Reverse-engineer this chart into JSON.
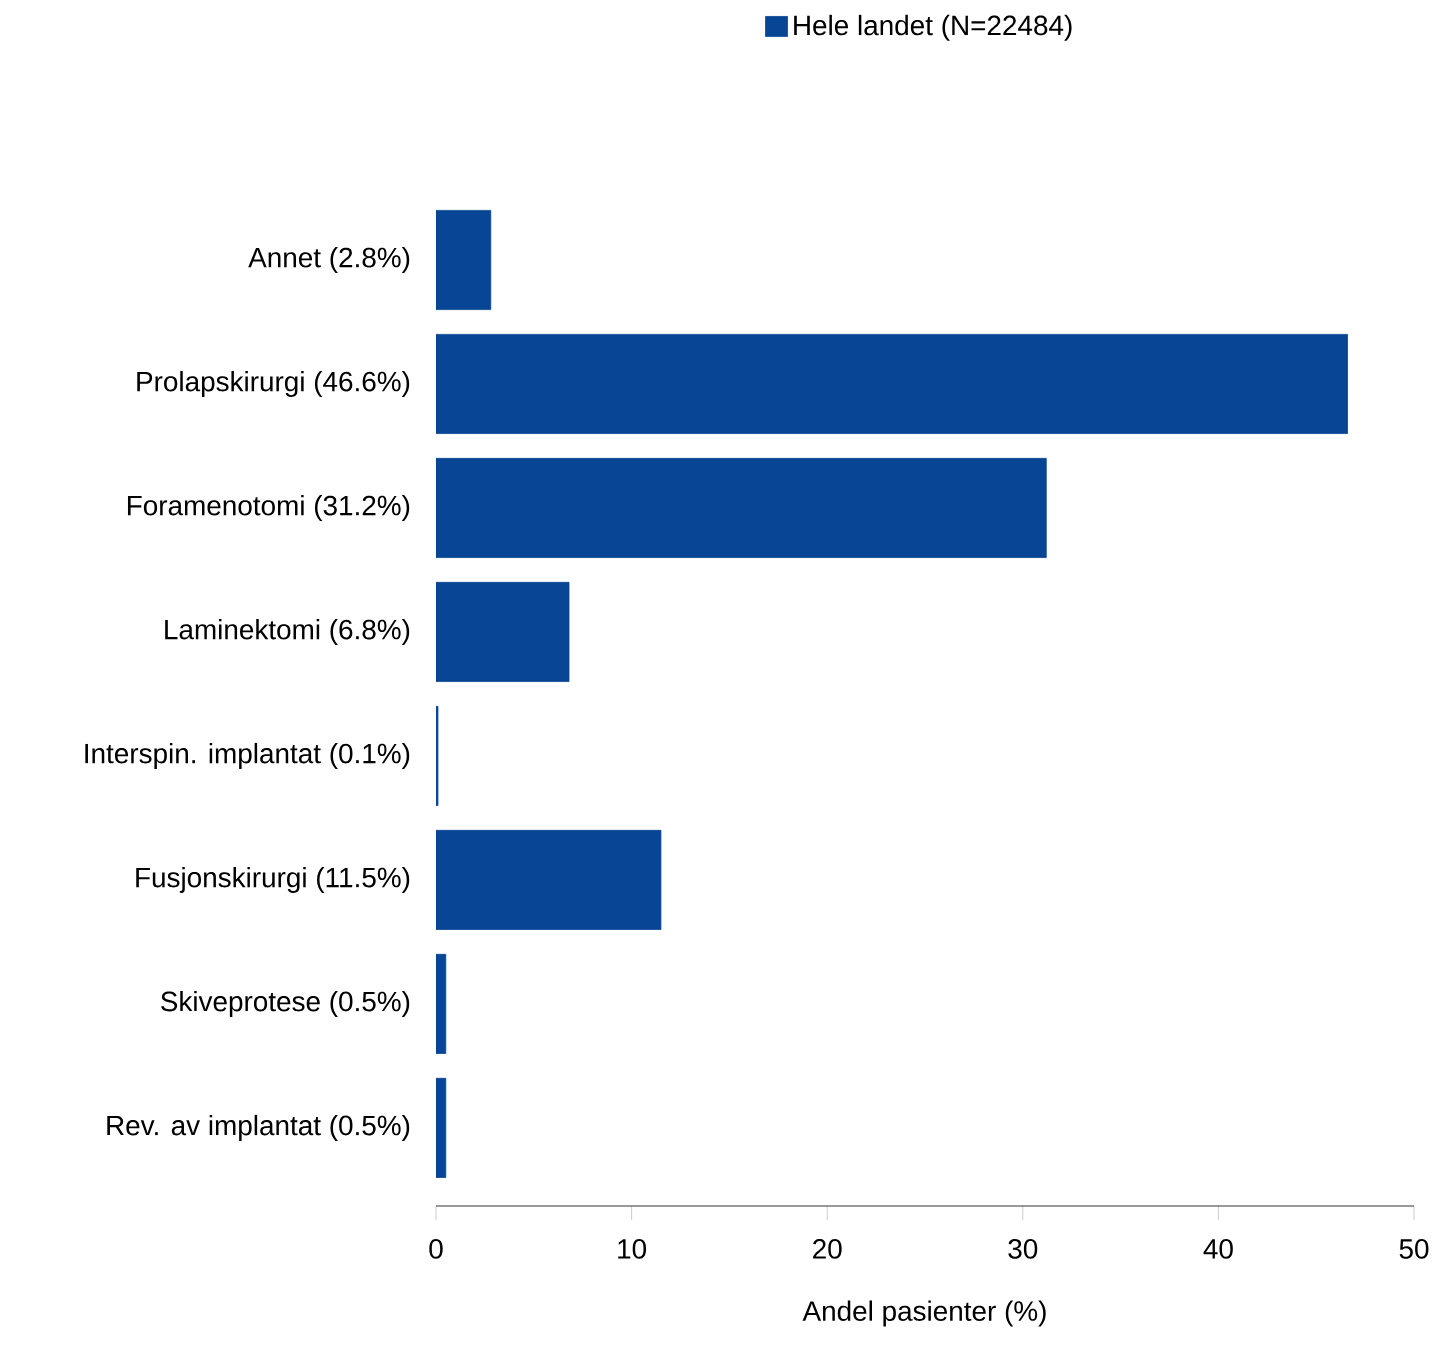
{
  "chart_data": {
    "type": "bar",
    "orientation": "horizontal",
    "xlabel": "Andel pasienter (%)",
    "categories": [
      "Annet (2.8%)",
      "Prolapskirurgi (46.6%)",
      "Foramenotomi (31.2%)",
      "Laminektomi (6.8%)",
      "Interspin. implantat (0.1%)",
      "Fusjonskirurgi (11.5%)",
      "Skiveprotese (0.5%)",
      "Rev. av implantat (0.5%)"
    ],
    "series": [
      {
        "name": "Hele landet (N=22484)",
        "color": "#084594",
        "values": [
          2.8,
          46.6,
          31.2,
          6.8,
          0.1,
          11.5,
          0.5,
          0.5
        ]
      }
    ],
    "xlim": [
      0,
      50
    ],
    "xticks": [
      0,
      10,
      20,
      30,
      40,
      50
    ],
    "legend": "top",
    "grid": false
  }
}
